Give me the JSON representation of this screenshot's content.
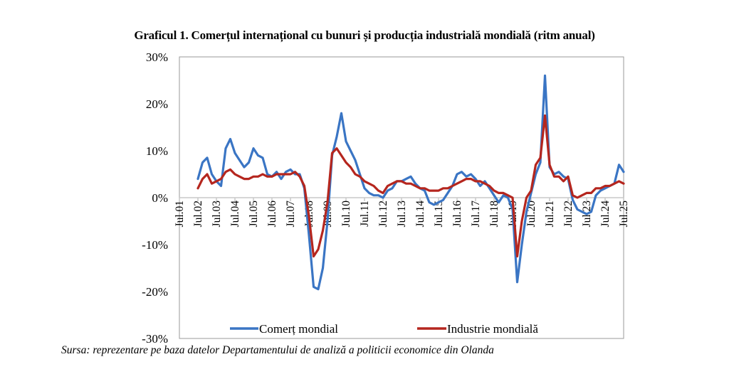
{
  "chart_data": {
    "type": "line",
    "title": "Graficul 1. Comerțul internațional cu bunuri și producția industrială mondială (ritm anual)",
    "xlabel": "",
    "ylabel": "",
    "ylim": [
      -30,
      30
    ],
    "yticks": [
      "30%",
      "20%",
      "10%",
      "0%",
      "-10%",
      "-20%",
      "-30%"
    ],
    "ytick_values": [
      30,
      20,
      10,
      0,
      -10,
      -20,
      -30
    ],
    "xlim": [
      2001.5,
      2025.5
    ],
    "xticks": [
      "Jul.01",
      "Jul.02",
      "Jul.03",
      "Jul.04",
      "Jul.05",
      "Jul.06",
      "Jul.07",
      "Jul.08",
      "Jul.09",
      "Jul.10",
      "Jul.11",
      "Jul.12",
      "Jul.13",
      "Jul.14",
      "Jul.15",
      "Jul.16",
      "Jul.17",
      "Jul.18",
      "Jul.19",
      "Jul.20",
      "Jul.21",
      "Jul.22",
      "Jul.23",
      "Jul.24",
      "Jul.25"
    ],
    "grid": false,
    "legend": {
      "position": "bottom"
    },
    "series": [
      {
        "name": "Comerț mondial",
        "color": "#3a75c4",
        "x": [
          2002.5,
          2002.75,
          2003.0,
          2003.25,
          2003.5,
          2003.75,
          2004.0,
          2004.25,
          2004.5,
          2004.75,
          2005.0,
          2005.25,
          2005.5,
          2005.75,
          2006.0,
          2006.25,
          2006.5,
          2006.75,
          2007.0,
          2007.25,
          2007.5,
          2007.75,
          2008.0,
          2008.25,
          2008.5,
          2008.75,
          2009.0,
          2009.25,
          2009.5,
          2009.75,
          2010.0,
          2010.25,
          2010.5,
          2010.75,
          2011.0,
          2011.25,
          2011.5,
          2011.75,
          2012.0,
          2012.25,
          2012.5,
          2012.75,
          2013.0,
          2013.25,
          2013.5,
          2013.75,
          2014.0,
          2014.25,
          2014.5,
          2014.75,
          2015.0,
          2015.25,
          2015.5,
          2015.75,
          2016.0,
          2016.25,
          2016.5,
          2016.75,
          2017.0,
          2017.25,
          2017.5,
          2017.75,
          2018.0,
          2018.25,
          2018.5,
          2018.75,
          2019.0,
          2019.25,
          2019.5,
          2019.75,
          2020.0,
          2020.25,
          2020.5,
          2020.75,
          2021.0,
          2021.25,
          2021.5,
          2021.75,
          2022.0,
          2022.25,
          2022.5,
          2022.75,
          2023.0,
          2023.25,
          2023.5,
          2023.75,
          2024.0,
          2024.25,
          2024.5,
          2024.75,
          2025.0,
          2025.25,
          2025.5
        ],
        "values": [
          4.0,
          7.5,
          8.5,
          5.0,
          3.5,
          2.5,
          10.5,
          12.5,
          9.5,
          8.0,
          6.5,
          7.5,
          10.5,
          9.0,
          8.5,
          5.0,
          4.5,
          5.5,
          4.0,
          5.5,
          6.0,
          5.0,
          5.0,
          2.0,
          -8.0,
          -19.0,
          -19.5,
          -15.0,
          -5.0,
          9.0,
          13.0,
          18.0,
          12.0,
          10.0,
          8.0,
          5.0,
          2.0,
          1.0,
          0.5,
          0.5,
          0.0,
          1.5,
          2.0,
          3.5,
          3.5,
          4.0,
          4.5,
          3.0,
          2.0,
          1.5,
          -1.0,
          -1.5,
          -1.0,
          -0.5,
          1.0,
          2.5,
          5.0,
          5.5,
          4.5,
          5.0,
          4.0,
          2.5,
          3.5,
          2.0,
          0.5,
          -1.0,
          0.5,
          0.0,
          -2.5,
          -18.0,
          -10.0,
          -3.0,
          1.0,
          5.0,
          7.5,
          26.0,
          6.5,
          5.0,
          5.5,
          4.5,
          4.0,
          -0.5,
          -2.5,
          -3.0,
          -3.5,
          -3.0,
          0.5,
          1.5,
          2.0,
          2.5,
          3.0,
          7.0,
          5.5
        ]
      },
      {
        "name": "Industrie mondială",
        "color": "#b5261e",
        "x": [
          2002.5,
          2002.75,
          2003.0,
          2003.25,
          2003.5,
          2003.75,
          2004.0,
          2004.25,
          2004.5,
          2004.75,
          2005.0,
          2005.25,
          2005.5,
          2005.75,
          2006.0,
          2006.25,
          2006.5,
          2006.75,
          2007.0,
          2007.25,
          2007.5,
          2007.75,
          2008.0,
          2008.25,
          2008.5,
          2008.75,
          2009.0,
          2009.25,
          2009.5,
          2009.75,
          2010.0,
          2010.25,
          2010.5,
          2010.75,
          2011.0,
          2011.25,
          2011.5,
          2011.75,
          2012.0,
          2012.25,
          2012.5,
          2012.75,
          2013.0,
          2013.25,
          2013.5,
          2013.75,
          2014.0,
          2014.25,
          2014.5,
          2014.75,
          2015.0,
          2015.25,
          2015.5,
          2015.75,
          2016.0,
          2016.25,
          2016.5,
          2016.75,
          2017.0,
          2017.25,
          2017.5,
          2017.75,
          2018.0,
          2018.25,
          2018.5,
          2018.75,
          2019.0,
          2019.25,
          2019.5,
          2019.75,
          2020.0,
          2020.25,
          2020.5,
          2020.75,
          2021.0,
          2021.25,
          2021.5,
          2021.75,
          2022.0,
          2022.25,
          2022.5,
          2022.75,
          2023.0,
          2023.25,
          2023.5,
          2023.75,
          2024.0,
          2024.25,
          2024.5,
          2024.75,
          2025.0,
          2025.25,
          2025.5
        ],
        "values": [
          2.0,
          4.0,
          5.0,
          3.0,
          3.5,
          4.0,
          5.5,
          6.0,
          5.0,
          4.5,
          4.0,
          4.0,
          4.5,
          4.5,
          5.0,
          4.5,
          4.5,
          5.0,
          5.0,
          5.0,
          5.0,
          5.5,
          4.5,
          2.5,
          -4.0,
          -12.5,
          -11.0,
          -7.0,
          -1.0,
          9.5,
          10.5,
          9.0,
          7.5,
          6.5,
          5.0,
          4.5,
          3.5,
          3.0,
          2.5,
          1.5,
          1.0,
          2.5,
          3.0,
          3.5,
          3.5,
          3.0,
          3.0,
          2.5,
          2.0,
          2.0,
          1.5,
          1.5,
          1.5,
          2.0,
          2.0,
          2.5,
          3.0,
          3.5,
          4.0,
          4.0,
          3.5,
          3.5,
          3.0,
          2.5,
          1.5,
          1.0,
          1.0,
          0.5,
          0.0,
          -12.5,
          -5.0,
          0.0,
          1.5,
          7.0,
          8.5,
          17.5,
          7.0,
          4.5,
          4.5,
          3.5,
          4.5,
          0.5,
          0.0,
          0.5,
          1.0,
          1.0,
          2.0,
          2.0,
          2.5,
          2.5,
          3.0,
          3.5,
          3.0
        ]
      }
    ]
  },
  "source_note": "Sursa: reprezentare pe baza datelor Departamentului de analiză a politicii economice din Olanda"
}
